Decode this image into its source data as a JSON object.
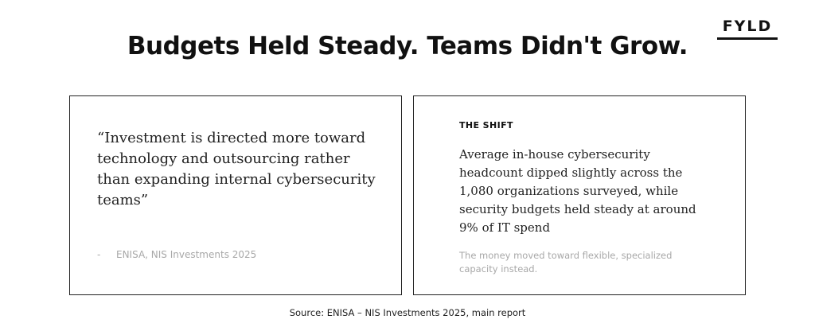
{
  "brand": {
    "logo_text": "FYLD"
  },
  "header": {
    "title": "Budgets Held Steady. Teams Didn't Grow."
  },
  "quote_card": {
    "quote": "“Investment is directed more toward technology and outsourcing rather than expanding internal cybersecurity teams”",
    "attribution_dash": "-",
    "attribution": "ENISA, NIS Investments 2025"
  },
  "shift_card": {
    "heading": "THE SHIFT",
    "body": "Average in-house cybersecurity headcount dipped slightly across the 1,080 organizations surveyed, while security budgets held steady at around 9% of IT spend",
    "note": "The money moved toward flexible, specialized capacity instead."
  },
  "footer": {
    "source": "Source: ENISA – NIS Investments 2025, main report"
  },
  "colors": {
    "text": "#111111",
    "muted": "#a8a8a8",
    "border": "#222222",
    "background": "#ffffff"
  }
}
